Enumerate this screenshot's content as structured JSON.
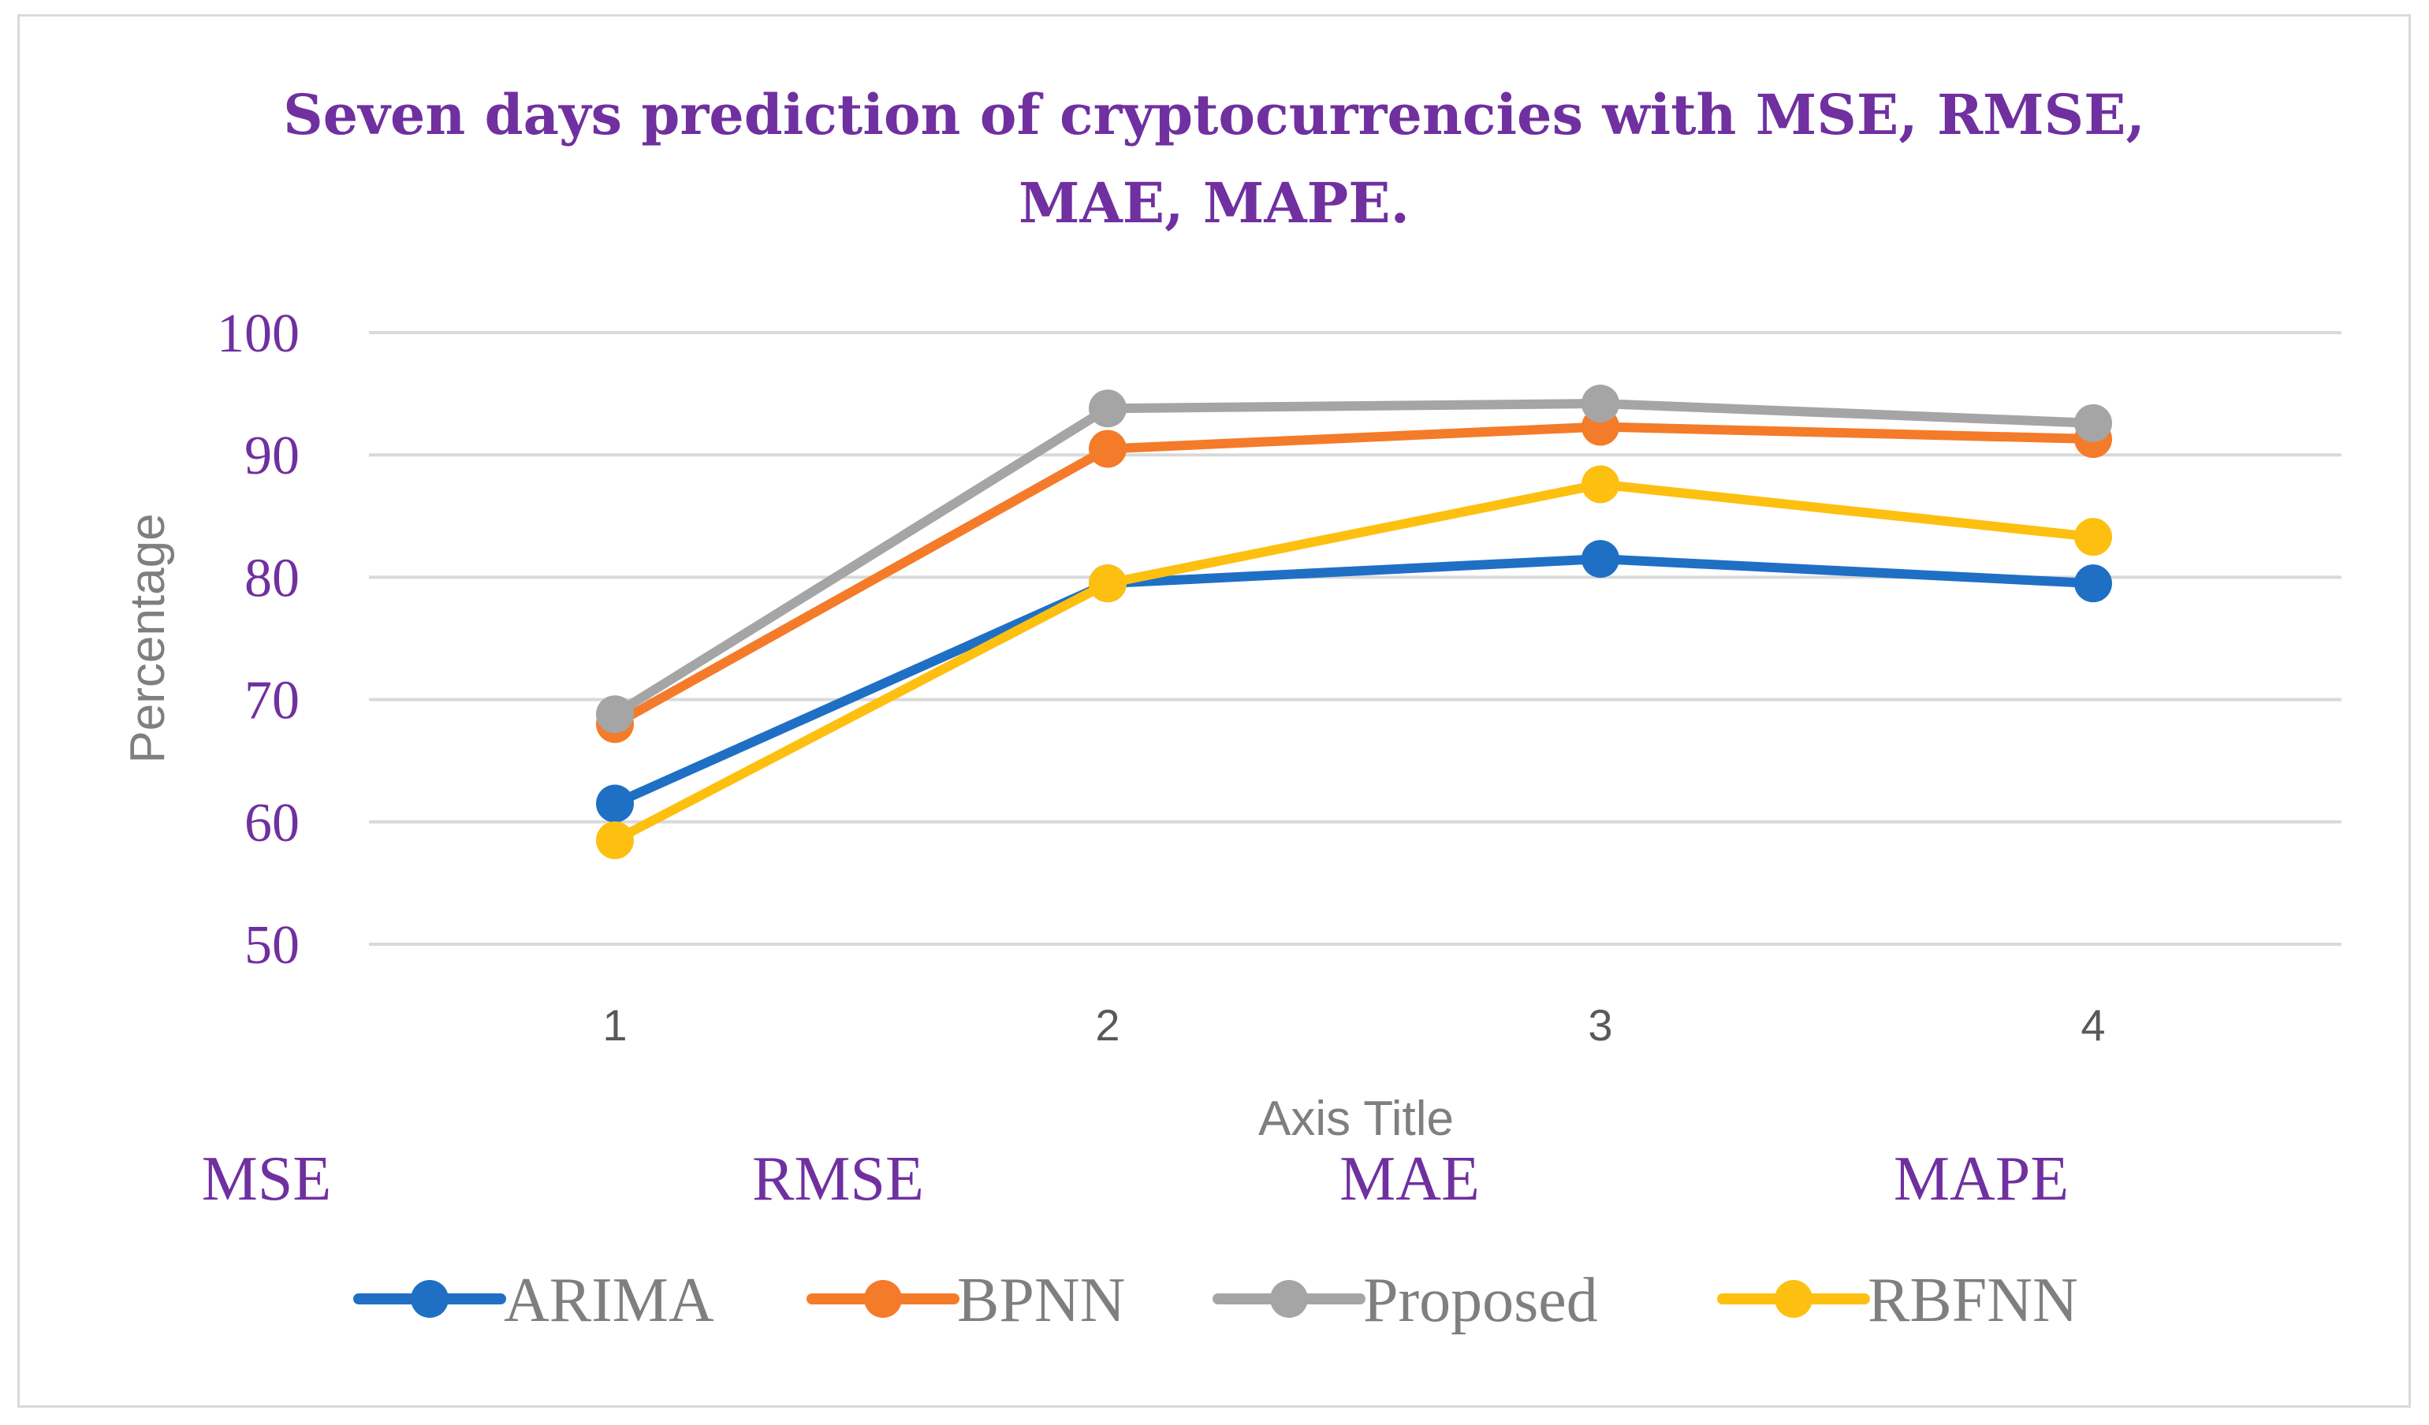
{
  "chart_data": {
    "type": "line",
    "title": "Seven days prediction of cryptocurrencies with MSE, RMSE, MAE, MAPE.",
    "title_lines": [
      "Seven days prediction of cryptocurrencies with MSE, RMSE,",
      "MAE, MAPE."
    ],
    "xlabel": "Axis Title",
    "ylabel": "Percentage",
    "x": [
      1,
      2,
      3,
      4
    ],
    "x_tick_labels": [
      "1",
      "2",
      "3",
      "4"
    ],
    "category_labels": [
      "MSE",
      "RMSE",
      "MAE",
      "MAPE"
    ],
    "ylim": [
      50,
      100
    ],
    "y_ticks": [
      50,
      60,
      70,
      80,
      90,
      100
    ],
    "grid": true,
    "legend_position": "bottom",
    "series": [
      {
        "name": "ARIMA",
        "values": [
          61.5,
          79.5,
          81.5,
          79.5
        ],
        "color": "#1f6fc5"
      },
      {
        "name": "BPNN",
        "values": [
          68.0,
          90.5,
          92.3,
          91.3
        ],
        "color": "#f47b2a"
      },
      {
        "name": "Proposed",
        "values": [
          68.8,
          93.8,
          94.2,
          92.6
        ],
        "color": "#a5a5a5"
      },
      {
        "name": "RBFNN",
        "values": [
          58.5,
          79.5,
          87.6,
          83.3
        ],
        "color": "#fdc010"
      }
    ]
  }
}
